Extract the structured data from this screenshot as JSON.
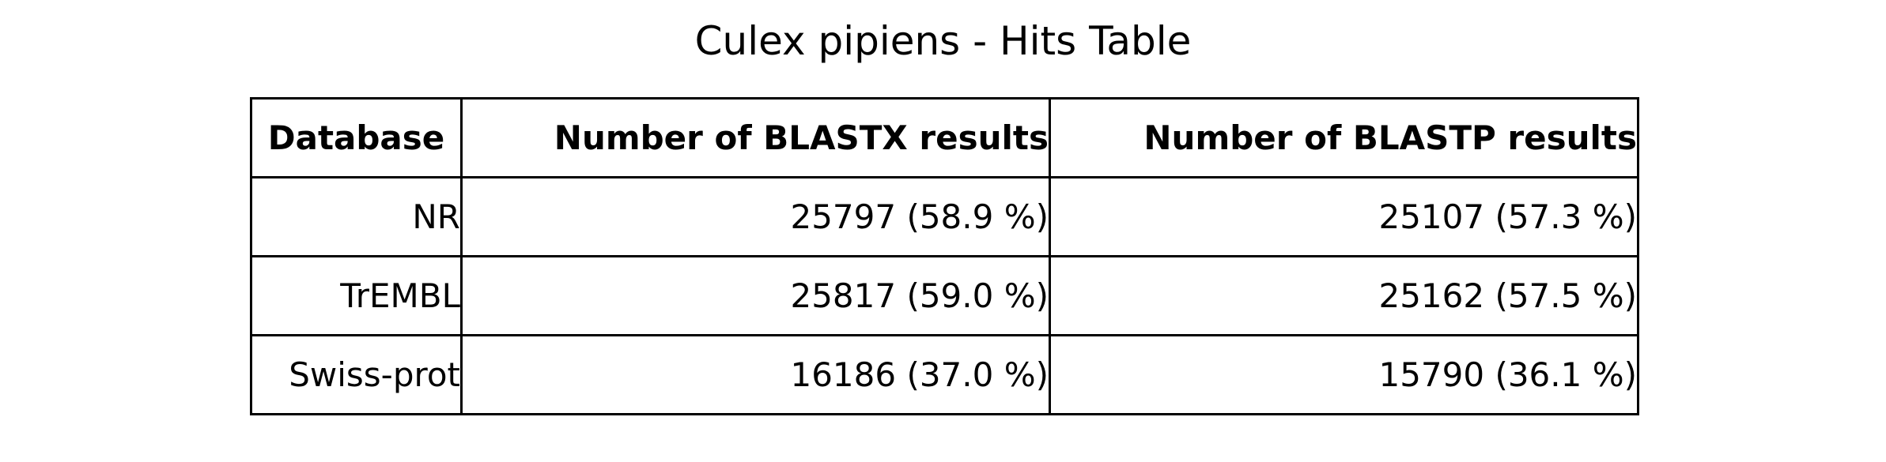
{
  "chart_data": {
    "type": "table",
    "title": "Culex pipiens - Hits Table",
    "columns": [
      "Database",
      "Number of BLASTX results",
      "Number of BLASTP results"
    ],
    "rows": [
      [
        "NR",
        "25797 (58.9 %)",
        "25107 (57.3 %)"
      ],
      [
        "TrEMBL",
        "25817 (59.0 %)",
        "25162 (57.5 %)"
      ],
      [
        "Swiss-prot",
        "16186 (37.0 %)",
        "15790 (36.1 %)"
      ]
    ]
  }
}
